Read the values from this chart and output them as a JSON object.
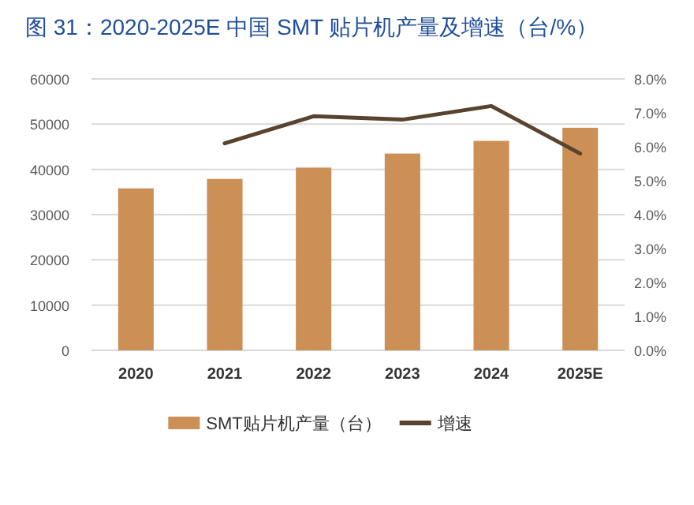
{
  "chart_data": {
    "type": "bar",
    "title": "图 31：2020-2025E 中国 SMT 贴片机产量及增速（台/%）",
    "categories": [
      "2020",
      "2021",
      "2022",
      "2023",
      "2024",
      "2025E"
    ],
    "series": [
      {
        "name": "SMT贴片机产量（台）",
        "color": "#cc8f55",
        "values": [
          35800,
          37900,
          40400,
          43500,
          46300,
          49200
        ]
      },
      {
        "name": "增速",
        "type": "line",
        "axis": "y2",
        "color": "#59432f",
        "values": [
          null,
          6.1,
          6.9,
          6.8,
          7.2,
          5.8
        ]
      }
    ],
    "ylim": [
      0,
      60000
    ],
    "yticks": [
      0,
      10000,
      20000,
      30000,
      40000,
      50000,
      60000
    ],
    "y2lim": [
      0,
      8
    ],
    "y2ticks": [
      {
        "value": 0,
        "label": "0.0%"
      },
      {
        "value": 1,
        "label": "1.0%"
      },
      {
        "value": 2,
        "label": "2.0%"
      },
      {
        "value": 3,
        "label": "3.0%"
      },
      {
        "value": 4,
        "label": "4.0%"
      },
      {
        "value": 5,
        "label": "5.0%"
      },
      {
        "value": 6,
        "label": "6.0%"
      },
      {
        "value": 7,
        "label": "7.0%"
      },
      {
        "value": 8,
        "label": "8.0%"
      }
    ],
    "grid": "y",
    "legend": "bottom",
    "marker": "none"
  }
}
